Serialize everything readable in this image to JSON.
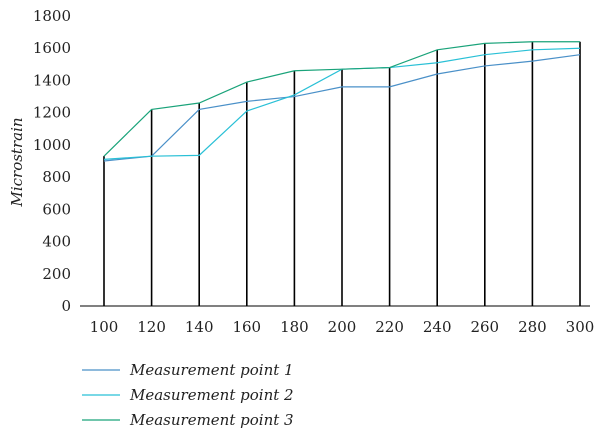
{
  "chart_data": {
    "type": "line",
    "title": "",
    "xlabel": "",
    "ylabel": "Microstrain",
    "x": [
      100,
      120,
      140,
      160,
      180,
      200,
      220,
      240,
      260,
      280,
      300
    ],
    "ylim": [
      0,
      1800
    ],
    "yticks": [
      0,
      200,
      400,
      600,
      800,
      1000,
      1200,
      1400,
      1600,
      1800
    ],
    "grid": false,
    "vertical_drop_lines": true,
    "legend_position": "bottom-left",
    "series": [
      {
        "name": "Measurement point 1",
        "color": "#4a90c8",
        "values": [
          900,
          930,
          1220,
          1270,
          1300,
          1360,
          1360,
          1440,
          1490,
          1520,
          1560
        ]
      },
      {
        "name": "Measurement point 2",
        "color": "#29c0d6",
        "values": [
          910,
          930,
          935,
          1210,
          1310,
          1470,
          1480,
          1510,
          1560,
          1590,
          1600
        ]
      },
      {
        "name": "Measurement point 3",
        "color": "#1aa37a",
        "values": [
          930,
          1220,
          1260,
          1390,
          1460,
          1470,
          1480,
          1590,
          1630,
          1640,
          1640
        ]
      }
    ]
  }
}
